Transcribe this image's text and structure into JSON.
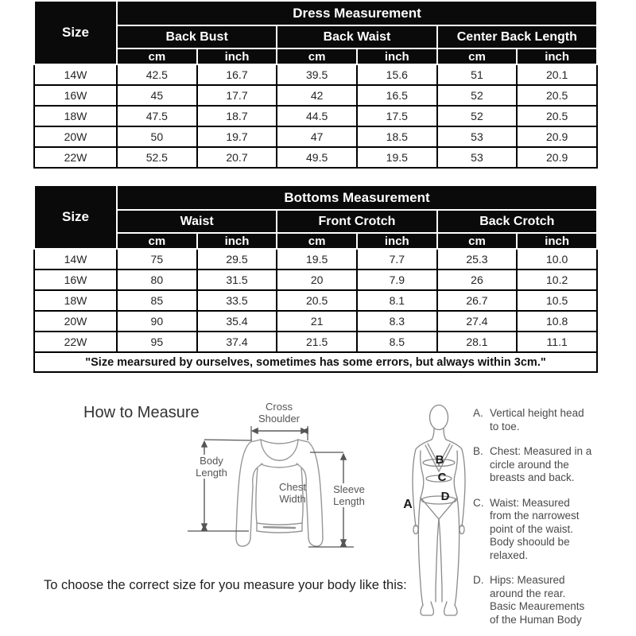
{
  "tables": {
    "dress": {
      "size_header": "Size",
      "title": "Dress Measurement",
      "groups": [
        "Back Bust",
        "Back Waist",
        "Center Back Length"
      ],
      "units": [
        "cm",
        "inch",
        "cm",
        "inch",
        "cm",
        "inch"
      ],
      "rows": [
        [
          "14W",
          "42.5",
          "16.7",
          "39.5",
          "15.6",
          "51",
          "20.1"
        ],
        [
          "16W",
          "45",
          "17.7",
          "42",
          "16.5",
          "52",
          "20.5"
        ],
        [
          "18W",
          "47.5",
          "18.7",
          "44.5",
          "17.5",
          "52",
          "20.5"
        ],
        [
          "20W",
          "50",
          "19.7",
          "47",
          "18.5",
          "53",
          "20.9"
        ],
        [
          "22W",
          "52.5",
          "20.7",
          "49.5",
          "19.5",
          "53",
          "20.9"
        ]
      ]
    },
    "bottoms": {
      "size_header": "Size",
      "title": "Bottoms Measurement",
      "groups": [
        "Waist",
        "Front Crotch",
        "Back Crotch"
      ],
      "units": [
        "cm",
        "inch",
        "cm",
        "inch",
        "cm",
        "inch"
      ],
      "rows": [
        [
          "14W",
          "75",
          "29.5",
          "19.5",
          "7.7",
          "25.3",
          "10.0"
        ],
        [
          "16W",
          "80",
          "31.5",
          "20",
          "7.9",
          "26",
          "10.2"
        ],
        [
          "18W",
          "85",
          "33.5",
          "20.5",
          "8.1",
          "26.7",
          "10.5"
        ],
        [
          "20W",
          "90",
          "35.4",
          "21",
          "8.3",
          "27.4",
          "10.8"
        ],
        [
          "22W",
          "95",
          "37.4",
          "21.5",
          "8.5",
          "28.1",
          "11.1"
        ]
      ],
      "note": "\"Size mearsured by ourselves, sometimes has some errors, but always within 3cm.\""
    }
  },
  "measure_guide": {
    "heading": "How to Measure",
    "shirt_labels": {
      "cross_shoulder": "Cross\nShoulder",
      "body_length": "Body\nLength",
      "chest_width": "Chest\nWidth",
      "sleeve_length": "Sleeve\nLength"
    },
    "figure_letters": {
      "a": "A",
      "b": "B",
      "c": "C",
      "d": "D"
    },
    "notes": [
      {
        "label": "A.",
        "text": "Vertical height head\nto toe."
      },
      {
        "label": "B.",
        "text": "Chest: Measured in a\ncircle around the\nbreasts and back."
      },
      {
        "label": "C.",
        "text": "Waist: Measured\nfrom the narrowest\npoint of the waist.\nBody shoould be\nrelaxed."
      },
      {
        "label": "D.",
        "text": "Hips: Measured\naround the rear.\nBasic Meaurements\nof the Human Body"
      }
    ]
  },
  "footer": {
    "text": "To choose the correct size for you measure your body like this:"
  },
  "colors": {
    "header_bg": "#0a0a0a",
    "header_text": "#ffffff",
    "cell_text": "#252525",
    "grid_line": "#000000",
    "diagram_line": "#979797",
    "dimension_line": "#555555",
    "note_text": "#4a4a4a"
  }
}
